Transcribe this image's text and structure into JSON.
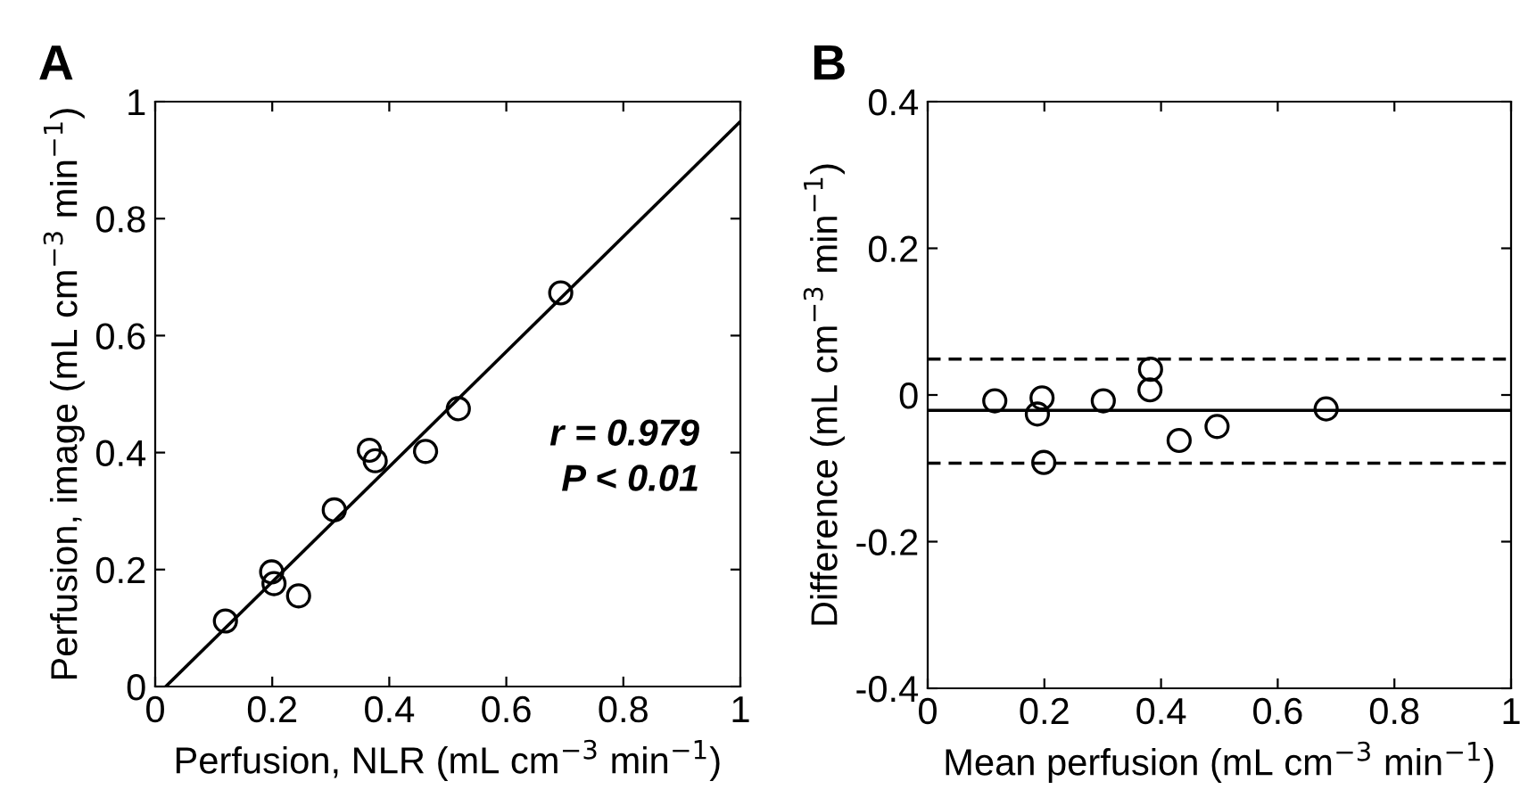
{
  "chart_data": [
    {
      "type": "scatter",
      "xlabel": "Perfusion, NLR (mL cm$^{−3}$ min$^{−1}$)",
      "ylabel": "Perfusion, image (mL cm$^{−3}$ min$^{−1}$)",
      "annotations": [
        "A",
        "r = 0.979\nP < 0.01"
      ],
      "xlim": [
        0,
        1
      ],
      "ylim": [
        0,
        1
      ],
      "xticks": [
        0,
        0.2,
        0.4,
        0.6,
        0.8,
        1
      ],
      "yticks": [
        0,
        0.2,
        0.4,
        0.6,
        0.8,
        1
      ],
      "grid": false,
      "series": [
        {
          "marker": "circle",
          "color": "#000000",
          "x": [
            0.12,
            0.199,
            0.203,
            0.245,
            0.306,
            0.366,
            0.376,
            0.462,
            0.518,
            0.693
          ],
          "values": [
            0.112,
            0.196,
            0.176,
            0.155,
            0.302,
            0.404,
            0.386,
            0.402,
            0.475,
            0.673
          ]
        },
        {
          "type": "line",
          "color": "#000000",
          "line_style": "solid",
          "x": [
            0.018,
            1
          ],
          "values": [
            0,
            0.966
          ]
        }
      ]
    },
    {
      "type": "scatter",
      "xlabel": "Mean perfusion (mL cm$^{−3}$ min$^{−1}$)",
      "ylabel": "Difference (mL cm$^{−3}$ min$^{−1}$)",
      "annotations": [
        "B"
      ],
      "xlim": [
        0,
        1
      ],
      "ylim": [
        -0.4,
        0.4
      ],
      "xticks": [
        0,
        0.2,
        0.4,
        0.6,
        0.8,
        1
      ],
      "yticks": [
        -0.4,
        -0.2,
        0,
        0.2,
        0.4
      ],
      "grid": false,
      "series": [
        {
          "marker": "circle",
          "color": "#000000",
          "x": [
            0.115,
            0.196,
            0.188,
            0.199,
            0.301,
            0.382,
            0.381,
            0.431,
            0.496,
            0.683
          ],
          "values": [
            -0.008,
            -0.004,
            -0.026,
            -0.092,
            -0.008,
            0.035,
            0.007,
            -0.062,
            -0.043,
            -0.019
          ]
        }
      ],
      "ref_lines": [
        {
          "axis": "y",
          "value": -0.021,
          "color": "#000000",
          "line_style": "solid"
        },
        {
          "axis": "y",
          "value": 0.049,
          "color": "#000000",
          "line_style": "dashed"
        },
        {
          "axis": "y",
          "value": -0.093,
          "color": "#000000",
          "line_style": "dashed"
        }
      ]
    }
  ]
}
